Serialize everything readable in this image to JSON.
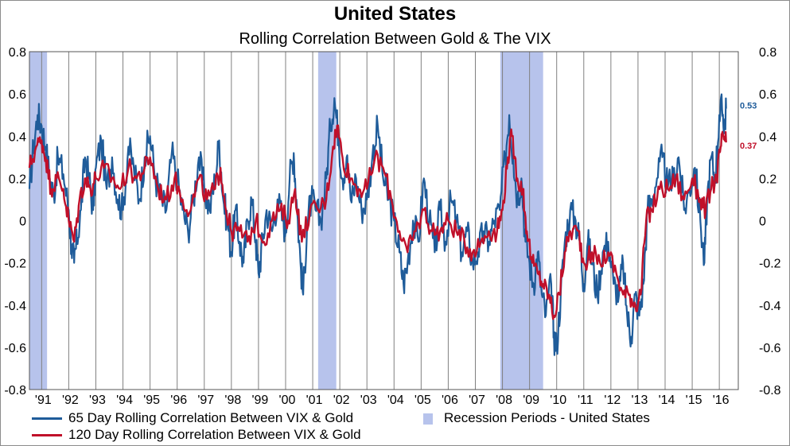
{
  "title": "United States",
  "subtitle": "Rolling Correlation Between Gold & The VIX",
  "colors": {
    "series65": "#1f5c9a",
    "series120": "#c0102a",
    "recession": "#b7c3ec",
    "grid": "#808080"
  },
  "legend": {
    "s65": "65 Day Rolling Correlation Between VIX & Gold",
    "recession": "Recession Periods - United States",
    "s120": "120 Day Rolling Correlation Between VIX & Gold"
  },
  "chart_data": {
    "type": "line",
    "title": "United States",
    "subtitle": "Rolling Correlation Between Gold & The VIX",
    "xlabel": "",
    "ylabel": "",
    "xlim": [
      1990.55,
      2016.7
    ],
    "ylim": [
      -0.8,
      0.8
    ],
    "yticks": [
      "0.8",
      "0.6",
      "0.4",
      "0.2",
      "0",
      "-0.2",
      "-0.4",
      "-0.6",
      "-0.8"
    ],
    "ytick_values": [
      0.8,
      0.6,
      0.4,
      0.2,
      0,
      -0.2,
      -0.4,
      -0.6,
      -0.8
    ],
    "xticks": [
      "'91",
      "'92",
      "'93",
      "'94",
      "'95",
      "'96",
      "'97",
      "'98",
      "'99",
      "'00",
      "'01",
      "'02",
      "'03",
      "'04",
      "'05",
      "'06",
      "'07",
      "'08",
      "'09",
      "'10",
      "'11",
      "'12",
      "'13",
      "'14",
      "'15",
      "'16"
    ],
    "xtick_values": [
      1991,
      1992,
      1993,
      1994,
      1995,
      1996,
      1997,
      1998,
      1999,
      2000,
      2001,
      2002,
      2003,
      2004,
      2005,
      2006,
      2007,
      2008,
      2009,
      2010,
      2011,
      2012,
      2013,
      2014,
      2015,
      2016
    ],
    "grid": "vertical",
    "legend_position": "bottom",
    "recessions": [
      [
        1990.55,
        1991.2
      ],
      [
        2001.2,
        2001.87
      ],
      [
        2007.92,
        2009.5
      ]
    ],
    "end_labels": [
      {
        "series": "65 Day Rolling Correlation Between VIX & Gold",
        "label": "0.53",
        "value": 0.53
      },
      {
        "series": "120 Day Rolling Correlation Between VIX & Gold",
        "label": "0.37",
        "value": 0.37
      }
    ],
    "series": [
      {
        "name": "65 Day Rolling Correlation Between VIX & Gold",
        "color": "#1f5c9a",
        "points": [
          [
            1990.55,
            0.15
          ],
          [
            1990.7,
            0.35
          ],
          [
            1990.85,
            0.5
          ],
          [
            1991.0,
            0.45
          ],
          [
            1991.15,
            0.35
          ],
          [
            1991.3,
            0.2
          ],
          [
            1991.45,
            0.12
          ],
          [
            1991.6,
            0.3
          ],
          [
            1991.8,
            0.22
          ],
          [
            1992.0,
            0.05
          ],
          [
            1992.1,
            -0.12
          ],
          [
            1992.2,
            -0.2
          ],
          [
            1992.3,
            -0.1
          ],
          [
            1992.45,
            0.05
          ],
          [
            1992.6,
            0.3
          ],
          [
            1992.75,
            0.2
          ],
          [
            1992.9,
            0.05
          ],
          [
            1993.0,
            0.25
          ],
          [
            1993.2,
            0.38
          ],
          [
            1993.4,
            0.15
          ],
          [
            1993.6,
            0.3
          ],
          [
            1993.8,
            0.1
          ],
          [
            1994.0,
            0.05
          ],
          [
            1994.2,
            0.35
          ],
          [
            1994.4,
            0.25
          ],
          [
            1994.6,
            0.1
          ],
          [
            1994.8,
            0.3
          ],
          [
            1995.0,
            0.4
          ],
          [
            1995.2,
            0.2
          ],
          [
            1995.4,
            0.1
          ],
          [
            1995.6,
            0.05
          ],
          [
            1995.8,
            0.32
          ],
          [
            1996.0,
            0.2
          ],
          [
            1996.2,
            0.05
          ],
          [
            1996.4,
            -0.05
          ],
          [
            1996.6,
            0.1
          ],
          [
            1996.8,
            0.3
          ],
          [
            1997.0,
            0.15
          ],
          [
            1997.2,
            0.05
          ],
          [
            1997.4,
            0.2
          ],
          [
            1997.55,
            0.38
          ],
          [
            1997.7,
            0.1
          ],
          [
            1997.85,
            0.0
          ],
          [
            1998.0,
            -0.15
          ],
          [
            1998.15,
            0.05
          ],
          [
            1998.3,
            -0.1
          ],
          [
            1998.45,
            -0.2
          ],
          [
            1998.6,
            0.0
          ],
          [
            1998.75,
            0.1
          ],
          [
            1998.9,
            -0.1
          ],
          [
            1999.0,
            -0.25
          ],
          [
            1999.15,
            -0.1
          ],
          [
            1999.3,
            0.05
          ],
          [
            1999.5,
            -0.05
          ],
          [
            1999.7,
            0.1
          ],
          [
            1999.9,
            0.0
          ],
          [
            2000.0,
            -0.05
          ],
          [
            2000.15,
            0.2
          ],
          [
            2000.3,
            0.32
          ],
          [
            2000.4,
            0.1
          ],
          [
            2000.55,
            -0.2
          ],
          [
            2000.65,
            -0.35
          ],
          [
            2000.8,
            0.0
          ],
          [
            2000.95,
            0.1
          ],
          [
            2001.1,
            0.05
          ],
          [
            2001.3,
            0.0
          ],
          [
            2001.5,
            0.2
          ],
          [
            2001.65,
            0.45
          ],
          [
            2001.8,
            0.58
          ],
          [
            2001.95,
            0.4
          ],
          [
            2002.1,
            0.2
          ],
          [
            2002.25,
            0.3
          ],
          [
            2002.4,
            0.1
          ],
          [
            2002.6,
            0.2
          ],
          [
            2002.8,
            0.05
          ],
          [
            2003.0,
            0.1
          ],
          [
            2003.2,
            0.3
          ],
          [
            2003.4,
            0.45
          ],
          [
            2003.6,
            0.2
          ],
          [
            2003.8,
            0.1
          ],
          [
            2004.0,
            0.0
          ],
          [
            2004.2,
            -0.15
          ],
          [
            2004.35,
            -0.3
          ],
          [
            2004.5,
            -0.2
          ],
          [
            2004.7,
            0.0
          ],
          [
            2004.9,
            -0.1
          ],
          [
            2005.1,
            0.2
          ],
          [
            2005.3,
            0.0
          ],
          [
            2005.5,
            -0.15
          ],
          [
            2005.7,
            0.05
          ],
          [
            2005.9,
            -0.1
          ],
          [
            2006.1,
            0.1
          ],
          [
            2006.3,
            0.0
          ],
          [
            2006.5,
            -0.15
          ],
          [
            2006.7,
            -0.05
          ],
          [
            2006.9,
            -0.2
          ],
          [
            2007.1,
            -0.15
          ],
          [
            2007.3,
            -0.05
          ],
          [
            2007.5,
            -0.1
          ],
          [
            2007.7,
            0.0
          ],
          [
            2007.9,
            0.05
          ],
          [
            2008.1,
            0.3
          ],
          [
            2008.25,
            0.5
          ],
          [
            2008.4,
            0.3
          ],
          [
            2008.55,
            0.1
          ],
          [
            2008.7,
            0.2
          ],
          [
            2008.85,
            -0.1
          ],
          [
            2009.0,
            -0.2
          ],
          [
            2009.15,
            -0.3
          ],
          [
            2009.3,
            -0.15
          ],
          [
            2009.45,
            -0.35
          ],
          [
            2009.6,
            -0.45
          ],
          [
            2009.8,
            -0.3
          ],
          [
            2009.9,
            -0.55
          ],
          [
            2010.0,
            -0.6
          ],
          [
            2010.15,
            -0.35
          ],
          [
            2010.3,
            -0.1
          ],
          [
            2010.5,
            0.05
          ],
          [
            2010.7,
            0.0
          ],
          [
            2010.85,
            -0.1
          ],
          [
            2011.0,
            -0.3
          ],
          [
            2011.15,
            -0.1
          ],
          [
            2011.3,
            -0.2
          ],
          [
            2011.5,
            -0.35
          ],
          [
            2011.7,
            -0.15
          ],
          [
            2011.9,
            -0.1
          ],
          [
            2012.1,
            -0.3
          ],
          [
            2012.3,
            -0.35
          ],
          [
            2012.45,
            -0.2
          ],
          [
            2012.6,
            -0.45
          ],
          [
            2012.75,
            -0.55
          ],
          [
            2012.9,
            -0.35
          ],
          [
            2013.05,
            -0.45
          ],
          [
            2013.2,
            -0.3
          ],
          [
            2013.35,
            0.05
          ],
          [
            2013.5,
            0.1
          ],
          [
            2013.7,
            0.2
          ],
          [
            2013.9,
            0.3
          ],
          [
            2014.1,
            0.15
          ],
          [
            2014.3,
            0.2
          ],
          [
            2014.5,
            0.3
          ],
          [
            2014.7,
            0.05
          ],
          [
            2014.9,
            0.15
          ],
          [
            2015.1,
            0.25
          ],
          [
            2015.3,
            0.0
          ],
          [
            2015.45,
            -0.2
          ],
          [
            2015.55,
            0.1
          ],
          [
            2015.7,
            0.3
          ],
          [
            2015.85,
            0.2
          ],
          [
            2016.0,
            0.5
          ],
          [
            2016.1,
            0.53
          ],
          [
            2016.2,
            0.45
          ],
          [
            2016.25,
            0.53
          ]
        ]
      },
      {
        "name": "120 Day Rolling Correlation Between VIX & Gold",
        "color": "#c0102a",
        "points": [
          [
            1990.55,
            0.25
          ],
          [
            1990.8,
            0.35
          ],
          [
            1991.0,
            0.38
          ],
          [
            1991.15,
            0.3
          ],
          [
            1991.35,
            0.15
          ],
          [
            1991.55,
            0.2
          ],
          [
            1991.8,
            0.15
          ],
          [
            1992.0,
            0.0
          ],
          [
            1992.2,
            -0.1
          ],
          [
            1992.4,
            0.1
          ],
          [
            1992.6,
            0.2
          ],
          [
            1992.8,
            0.15
          ],
          [
            1993.0,
            0.2
          ],
          [
            1993.3,
            0.25
          ],
          [
            1993.6,
            0.2
          ],
          [
            1993.9,
            0.15
          ],
          [
            1994.2,
            0.25
          ],
          [
            1994.5,
            0.2
          ],
          [
            1994.8,
            0.25
          ],
          [
            1995.0,
            0.3
          ],
          [
            1995.3,
            0.15
          ],
          [
            1995.6,
            0.1
          ],
          [
            1995.9,
            0.2
          ],
          [
            1996.2,
            0.1
          ],
          [
            1996.5,
            0.05
          ],
          [
            1996.8,
            0.2
          ],
          [
            1997.1,
            0.1
          ],
          [
            1997.4,
            0.15
          ],
          [
            1997.6,
            0.25
          ],
          [
            1997.8,
            0.05
          ],
          [
            1998.0,
            -0.05
          ],
          [
            1998.3,
            -0.05
          ],
          [
            1998.6,
            -0.1
          ],
          [
            1998.9,
            0.0
          ],
          [
            1999.2,
            -0.1
          ],
          [
            1999.5,
            0.0
          ],
          [
            1999.8,
            0.05
          ],
          [
            2000.1,
            0.0
          ],
          [
            2000.35,
            0.15
          ],
          [
            2000.6,
            -0.1
          ],
          [
            2000.9,
            0.05
          ],
          [
            2001.2,
            0.05
          ],
          [
            2001.5,
            0.1
          ],
          [
            2001.75,
            0.35
          ],
          [
            2001.9,
            0.45
          ],
          [
            2002.1,
            0.3
          ],
          [
            2002.4,
            0.2
          ],
          [
            2002.7,
            0.15
          ],
          [
            2003.0,
            0.15
          ],
          [
            2003.3,
            0.3
          ],
          [
            2003.6,
            0.25
          ],
          [
            2003.9,
            0.1
          ],
          [
            2004.2,
            -0.05
          ],
          [
            2004.5,
            -0.15
          ],
          [
            2004.8,
            -0.05
          ],
          [
            2005.1,
            0.05
          ],
          [
            2005.4,
            -0.05
          ],
          [
            2005.7,
            -0.05
          ],
          [
            2006.0,
            0.0
          ],
          [
            2006.3,
            -0.05
          ],
          [
            2006.6,
            -0.1
          ],
          [
            2006.9,
            -0.15
          ],
          [
            2007.2,
            -0.1
          ],
          [
            2007.5,
            -0.05
          ],
          [
            2007.8,
            -0.05
          ],
          [
            2008.0,
            0.05
          ],
          [
            2008.2,
            0.3
          ],
          [
            2008.35,
            0.4
          ],
          [
            2008.55,
            0.2
          ],
          [
            2008.75,
            0.15
          ],
          [
            2008.9,
            -0.05
          ],
          [
            2009.1,
            -0.2
          ],
          [
            2009.3,
            -0.25
          ],
          [
            2009.5,
            -0.3
          ],
          [
            2009.7,
            -0.35
          ],
          [
            2009.9,
            -0.45
          ],
          [
            2010.1,
            -0.35
          ],
          [
            2010.3,
            -0.15
          ],
          [
            2010.5,
            -0.05
          ],
          [
            2010.8,
            -0.05
          ],
          [
            2011.0,
            -0.2
          ],
          [
            2011.3,
            -0.15
          ],
          [
            2011.6,
            -0.2
          ],
          [
            2011.9,
            -0.15
          ],
          [
            2012.2,
            -0.25
          ],
          [
            2012.45,
            -0.35
          ],
          [
            2012.7,
            -0.35
          ],
          [
            2012.9,
            -0.4
          ],
          [
            2013.1,
            -0.35
          ],
          [
            2013.3,
            0.0
          ],
          [
            2013.5,
            0.05
          ],
          [
            2013.8,
            0.15
          ],
          [
            2014.1,
            0.15
          ],
          [
            2014.4,
            0.2
          ],
          [
            2014.7,
            0.1
          ],
          [
            2015.0,
            0.2
          ],
          [
            2015.3,
            0.1
          ],
          [
            2015.5,
            0.05
          ],
          [
            2015.7,
            0.15
          ],
          [
            2015.9,
            0.2
          ],
          [
            2016.05,
            0.35
          ],
          [
            2016.15,
            0.4
          ],
          [
            2016.25,
            0.37
          ]
        ]
      }
    ]
  }
}
